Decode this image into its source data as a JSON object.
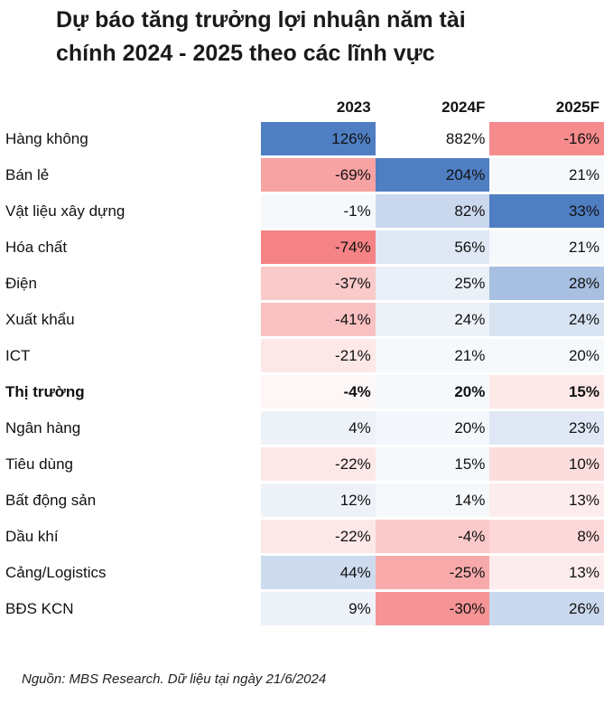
{
  "title_lines": [
    "Dự báo tăng trưởng lợi nhuận năm tài",
    "chính 2024 - 2025 theo các lĩnh vực"
  ],
  "source": "Nguồn: MBS Research. Dữ liệu tại ngày 21/6/2024",
  "colors": {
    "positive": "#4f7ec3",
    "negative": "#f26466",
    "neutral": "#ffffff"
  },
  "chart_data": {
    "type": "heatmap",
    "title": "Dự báo tăng trưởng lợi nhuận năm tài chính 2024 - 2025 theo các lĩnh vực",
    "columns": [
      "2023",
      "2024F",
      "2025F"
    ],
    "rows": [
      "Hàng không",
      "Bán lẻ",
      "Vật liệu xây dựng",
      "Hóa chất",
      "Điện",
      "Xuất khẩu",
      "ICT",
      "Thị trường",
      "Ngân hàng",
      "Tiêu dùng",
      "Bất động sản",
      "Dầu khí",
      "Cảng/Logistics",
      "BĐS KCN"
    ],
    "bold_rows": [
      "Thị trường"
    ],
    "values": [
      [
        126,
        882,
        -16
      ],
      [
        -69,
        204,
        21
      ],
      [
        -1,
        82,
        33
      ],
      [
        -74,
        56,
        21
      ],
      [
        -37,
        25,
        28
      ],
      [
        -41,
        24,
        24
      ],
      [
        -21,
        21,
        20
      ],
      [
        -4,
        20,
        15
      ],
      [
        4,
        20,
        23
      ],
      [
        -22,
        15,
        10
      ],
      [
        12,
        14,
        13
      ],
      [
        -22,
        -4,
        8
      ],
      [
        44,
        -25,
        13
      ],
      [
        9,
        -30,
        26
      ]
    ],
    "labels": [
      [
        "126%",
        "882%",
        "-16%"
      ],
      [
        "-69%",
        "204%",
        "21%"
      ],
      [
        "-1%",
        "82%",
        "33%"
      ],
      [
        "-74%",
        "56%",
        "21%"
      ],
      [
        "-37%",
        "25%",
        "28%"
      ],
      [
        "-41%",
        "24%",
        "24%"
      ],
      [
        "-21%",
        "21%",
        "20%"
      ],
      [
        "-4%",
        "20%",
        "15%"
      ],
      [
        "4%",
        "20%",
        "23%"
      ],
      [
        "-22%",
        "15%",
        "10%"
      ],
      [
        "12%",
        "14%",
        "13%"
      ],
      [
        "-22%",
        "-4%",
        "8%"
      ],
      [
        "44%",
        "-25%",
        "13%"
      ],
      [
        "9%",
        "-30%",
        "26%"
      ]
    ],
    "cell_fill": [
      [
        1.0,
        0,
        -0.75
      ],
      [
        -0.6,
        1.0,
        0.05
      ],
      [
        0.05,
        0.3,
        1.0
      ],
      [
        -0.8,
        0.18,
        0.05
      ],
      [
        -0.35,
        0.12,
        0.5
      ],
      [
        -0.4,
        0.1,
        0.22
      ],
      [
        -0.15,
        0.05,
        0.05
      ],
      [
        -0.05,
        0.05,
        -0.15
      ],
      [
        0.1,
        0.06,
        0.18
      ],
      [
        -0.15,
        0.05,
        -0.22
      ],
      [
        0.1,
        0.05,
        -0.12
      ],
      [
        -0.15,
        -0.35,
        -0.25
      ],
      [
        0.28,
        -0.55,
        -0.12
      ],
      [
        0.1,
        -0.7,
        0.3
      ]
    ]
  }
}
